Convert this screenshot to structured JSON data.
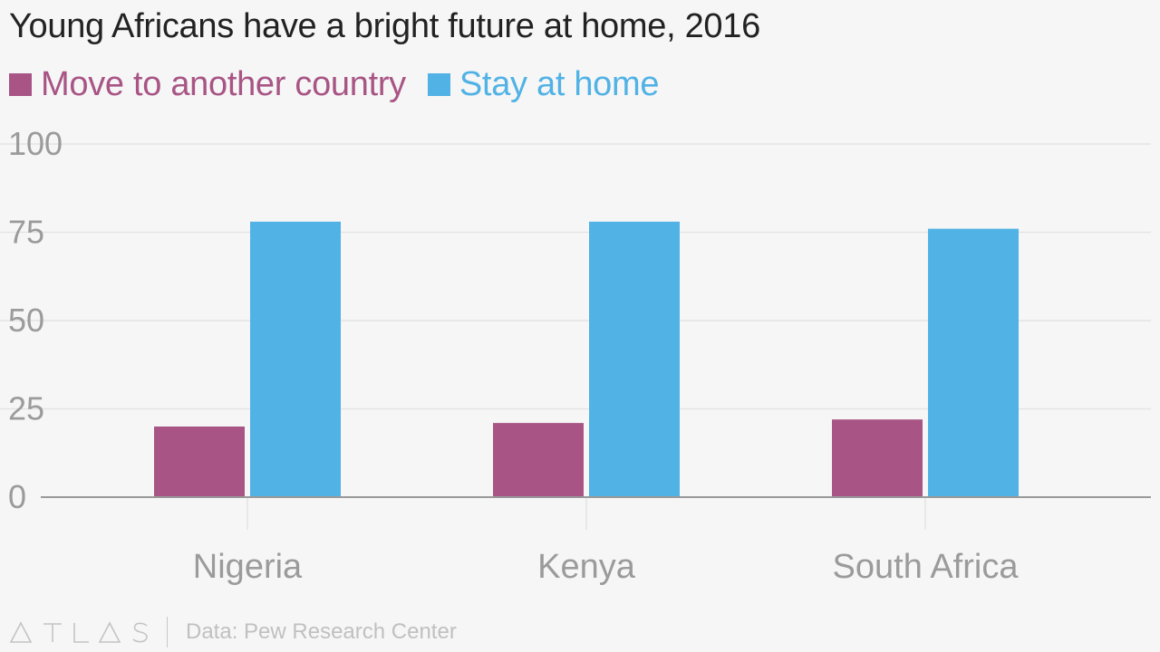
{
  "chart_data": {
    "type": "bar",
    "title": "Young Africans have a bright future at home, 2016",
    "categories": [
      "Nigeria",
      "Kenya",
      "South Africa"
    ],
    "series": [
      {
        "name": "Move to another country",
        "values": [
          20,
          21,
          22
        ],
        "color": "#a85585"
      },
      {
        "name": "Stay at home",
        "values": [
          78,
          78,
          76
        ],
        "color": "#51b2e5"
      }
    ],
    "ylim": [
      0,
      100
    ],
    "yticks": [
      "0",
      "25",
      "50",
      "75",
      "100"
    ],
    "ytick_values": [
      0,
      25,
      50,
      75,
      100
    ],
    "grid": true,
    "legend_position": "top-left",
    "colors": {
      "background": "#f6f6f6",
      "gridline": "#e4e4e4",
      "axis": "#999999",
      "tick_label": "#9b9b9b",
      "title": "#222222"
    }
  },
  "footer": {
    "logo_icon": "atlas-logo-icon",
    "source": "Data: Pew Research Center"
  }
}
